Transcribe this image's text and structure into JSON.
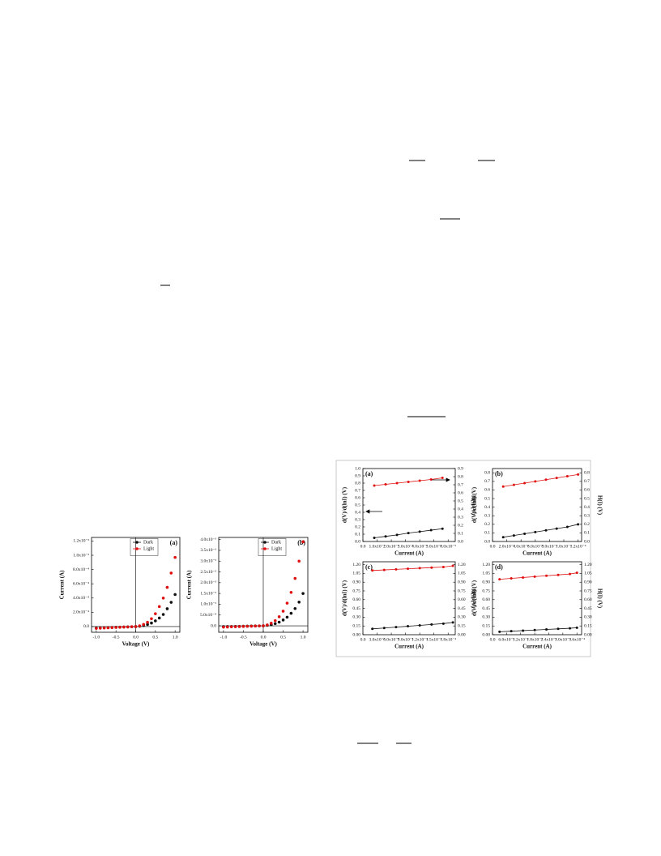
{
  "chart_data": [
    {
      "type": "scatter",
      "label": "(a)",
      "label_corner": "upper right",
      "x_label": "Voltage (V)",
      "y_label": "Current (A)",
      "legend": "upper right",
      "origin_lines": true,
      "x": [
        -1,
        -0.9,
        -0.8,
        -0.7,
        -0.6,
        -0.5,
        -0.4,
        -0.3,
        -0.2,
        -0.1,
        0,
        0.1,
        0.2,
        0.3,
        0.4,
        0.5,
        0.6,
        0.7,
        0.8,
        0.9,
        1
      ],
      "xlim": [
        -1.12,
        1.12
      ],
      "xticks": [
        {
          "value": -1,
          "label": "-1.0"
        },
        -0.5,
        {
          "value": 0,
          "label": "0.0"
        },
        0.5,
        {
          "value": 1,
          "label": "1.0"
        }
      ],
      "ylim": [
        -8e-05,
        0.00125
      ],
      "yticks": [
        {
          "value": 0,
          "label": "0.0"
        },
        {
          "value": 0.0002,
          "label": "2.0x10⁻⁴"
        },
        {
          "value": 0.0004,
          "label": "4.0x10⁻⁴"
        },
        {
          "value": 0.0006,
          "label": "6.0x10⁻⁴"
        },
        {
          "value": 0.0008,
          "label": "8.0x10⁻⁴"
        },
        {
          "value": 0.001,
          "label": "1.0x10⁻³"
        },
        {
          "value": 0.0012,
          "label": "1.2x10⁻³"
        }
      ],
      "series": [
        {
          "name": "Dark",
          "color": "#111111",
          "values": [
            -2e-05,
            -1.8e-05,
            -1.6e-05,
            -1.4e-05,
            -1.2e-05,
            -1e-05,
            -8e-06,
            -6e-06,
            -4e-06,
            -2e-06,
            0,
            5e-06,
            1.5e-05,
            3e-05,
            5e-05,
            8e-05,
            0.00012,
            0.00017,
            0.00025,
            0.00034,
            0.00045
          ]
        },
        {
          "name": "Light",
          "color": "#e01010",
          "values": [
            -2.5e-05,
            -2.2e-05,
            -2e-05,
            -1.7e-05,
            -1.5e-05,
            -1.2e-05,
            -1e-05,
            -7e-06,
            -5e-06,
            -2e-06,
            0,
            1e-05,
            3e-05,
            6e-05,
            0.00011,
            0.00018,
            0.00028,
            0.0004,
            0.00055,
            0.00075,
            0.00097
          ]
        }
      ]
    },
    {
      "type": "scatter",
      "label": "(b)",
      "label_corner": "upper right",
      "x_label": "Voltage (V)",
      "y_label": "Current (A)",
      "legend": "upper right",
      "origin_lines": true,
      "x": [
        -1,
        -0.9,
        -0.8,
        -0.7,
        -0.6,
        -0.5,
        -0.4,
        -0.3,
        -0.2,
        -0.1,
        0,
        0.1,
        0.2,
        0.3,
        0.4,
        0.5,
        0.6,
        0.7,
        0.8,
        0.9,
        1
      ],
      "xlim": [
        -1.12,
        1.12
      ],
      "xticks": [
        {
          "value": -1,
          "label": "-1.0"
        },
        -0.5,
        {
          "value": 0,
          "label": "0.0"
        },
        0.5,
        {
          "value": 1,
          "label": "1.0"
        }
      ],
      "ylim": [
        -0.0003,
        0.0041
      ],
      "yticks": [
        {
          "value": 0,
          "label": "0.0"
        },
        {
          "value": 0.0005,
          "label": "5.0x10⁻⁴"
        },
        {
          "value": 0.001,
          "label": "1.0x10⁻³"
        },
        {
          "value": 0.0015,
          "label": "1.5x10⁻³"
        },
        {
          "value": 0.002,
          "label": "2.0x10⁻³"
        },
        {
          "value": 0.0025,
          "label": "2.5x10⁻³"
        },
        {
          "value": 0.003,
          "label": "3.0x10⁻³"
        },
        {
          "value": 0.0035,
          "label": "3.5x10⁻³"
        },
        {
          "value": 0.004,
          "label": "4.0x10⁻³"
        }
      ],
      "series": [
        {
          "name": "Dark",
          "color": "#111111",
          "values": [
            -4e-05,
            -3.6e-05,
            -3.2e-05,
            -2.8e-05,
            -2.4e-05,
            -2e-05,
            -1.6e-05,
            -1.2e-05,
            -8e-06,
            -4e-06,
            0,
            2e-05,
            5e-05,
            0.0001,
            0.00017,
            0.00027,
            0.0004,
            0.00058,
            0.0008,
            0.0011,
            0.0015
          ]
        },
        {
          "name": "Light",
          "color": "#e01010",
          "values": [
            -6e-05,
            -5.4e-05,
            -4.8e-05,
            -4.2e-05,
            -3.6e-05,
            -3e-05,
            -2.4e-05,
            -1.8e-05,
            -1.2e-05,
            -6e-06,
            0,
            4e-05,
            0.00012,
            0.00024,
            0.00042,
            0.00068,
            0.00105,
            0.00155,
            0.0022,
            0.003,
            0.0039
          ]
        }
      ]
    },
    {
      "type": "line",
      "label": "(a)",
      "label_corner": "upper left",
      "x_label": "Current (A)",
      "y_label": "d(V)/d(lnI) (V)",
      "y2_label": "H(I) (V)",
      "x": [
        8e-06,
        1.6e-05,
        2.4e-05,
        3.2e-05,
        4e-05,
        4.8e-05,
        5.6e-05
      ],
      "xlim": [
        0,
        6.5e-05
      ],
      "xticks": [
        {
          "value": 0,
          "label": "0.0"
        },
        {
          "value": 1e-05,
          "label": "1.0x10⁻⁵"
        },
        {
          "value": 2e-05,
          "label": "2.0x10⁻⁵"
        },
        {
          "value": 3e-05,
          "label": "3.0x10⁻⁵"
        },
        {
          "value": 4e-05,
          "label": "4.0x10⁻⁵"
        },
        {
          "value": 5e-05,
          "label": "5.0x10⁻⁵"
        },
        {
          "value": 6e-05,
          "label": "6.0x10⁻⁵"
        }
      ],
      "ylim": [
        0,
        1
      ],
      "yticks": [
        {
          "value": 0,
          "label": "0.0"
        },
        0.1,
        0.2,
        0.3,
        0.4,
        0.5,
        0.6,
        0.7,
        0.8,
        0.9,
        {
          "value": 1,
          "label": "1.0"
        }
      ],
      "y2lim": [
        0,
        0.9
      ],
      "y2ticks": [
        {
          "value": 0,
          "label": "0.0"
        },
        0.1,
        0.2,
        0.3,
        0.4,
        0.5,
        0.6,
        0.7,
        0.8,
        0.9
      ],
      "series": [
        {
          "color": "#111111",
          "values": [
            0.05,
            0.07,
            0.09,
            0.115,
            0.135,
            0.155,
            0.175
          ]
        },
        {
          "color": "#e01010",
          "axis": "y2",
          "values": [
            0.69,
            0.705,
            0.72,
            0.735,
            0.75,
            0.765,
            0.785
          ]
        }
      ]
    },
    {
      "type": "line",
      "label": "(b)",
      "label_corner": "upper left",
      "x_label": "Current (A)",
      "y_label": "d(V)/d(lnI) (V)",
      "y2_label": "H(I) (V)",
      "x": [
        1.5e-05,
        3e-05,
        4.5e-05,
        6e-05,
        7.5e-05,
        9e-05,
        0.000105,
        0.00012
      ],
      "xlim": [
        0,
        0.000125
      ],
      "xticks": [
        {
          "value": 0,
          "label": "0.0"
        },
        {
          "value": 2e-05,
          "label": "2.0x10⁻⁵"
        },
        {
          "value": 4e-05,
          "label": "4.0x10⁻⁵"
        },
        {
          "value": 6e-05,
          "label": "6.0x10⁻⁵"
        },
        {
          "value": 8e-05,
          "label": "8.0x10⁻⁵"
        },
        {
          "value": 0.0001,
          "label": "1.0x10⁻⁴"
        },
        {
          "value": 0.00012,
          "label": "1.2x10⁻⁴"
        }
      ],
      "ylim": [
        0,
        0.85
      ],
      "yticks": [
        {
          "value": 0,
          "label": "0.0"
        },
        0.1,
        0.2,
        0.3,
        0.4,
        0.5,
        0.6,
        0.7,
        0.8
      ],
      "y2lim": [
        0,
        0.85
      ],
      "y2ticks": [
        {
          "value": 0,
          "label": "0.0"
        },
        0.1,
        0.2,
        0.3,
        0.4,
        0.5,
        0.6,
        0.7,
        0.8
      ],
      "series": [
        {
          "color": "#111111",
          "values": [
            0.05,
            0.07,
            0.09,
            0.11,
            0.13,
            0.15,
            0.17,
            0.2
          ]
        },
        {
          "color": "#e01010",
          "axis": "y2",
          "values": [
            0.64,
            0.66,
            0.68,
            0.7,
            0.72,
            0.74,
            0.76,
            0.78
          ]
        }
      ]
    },
    {
      "type": "line",
      "label": "(c)",
      "label_corner": "upper left",
      "x_label": "Current (A)",
      "y_label": "d(V)/d(lnI) (V)",
      "y2_label": "H(I) (V)",
      "x": [
        2e-05,
        4.5e-05,
        7e-05,
        9.5e-05,
        0.00012,
        0.000145,
        0.00017,
        0.00019
      ],
      "xlim": [
        0,
        0.000195
      ],
      "xticks": [
        {
          "value": 0,
          "label": "0.0"
        },
        {
          "value": 3e-05,
          "label": "3.0x10⁻⁵"
        },
        {
          "value": 6e-05,
          "label": "6.0x10⁻⁵"
        },
        {
          "value": 9e-05,
          "label": "9.0x10⁻⁵"
        },
        {
          "value": 0.00012,
          "label": "1.2x10⁻⁴"
        },
        {
          "value": 0.00015,
          "label": "1.5x10⁻⁴"
        },
        {
          "value": 0.00018,
          "label": "1.8x10⁻⁴"
        }
      ],
      "ylim": [
        0,
        1.25
      ],
      "yticks": [
        {
          "value": 0,
          "label": "0.00"
        },
        0.15,
        {
          "value": 0.3,
          "label": "0.30"
        },
        0.45,
        {
          "value": 0.6,
          "label": "0.60"
        },
        0.75,
        {
          "value": 0.9,
          "label": "0.90"
        },
        1.05,
        {
          "value": 1.2,
          "label": "1.20"
        }
      ],
      "y2lim": [
        0,
        1.25
      ],
      "y2ticks": [
        {
          "value": 0,
          "label": "0.00"
        },
        0.15,
        {
          "value": 0.3,
          "label": "0.30"
        },
        0.45,
        {
          "value": 0.6,
          "label": "0.60"
        },
        0.75,
        {
          "value": 0.9,
          "label": "0.90"
        },
        1.05,
        {
          "value": 1.2,
          "label": "1.20"
        }
      ],
      "series": [
        {
          "color": "#111111",
          "values": [
            0.1,
            0.115,
            0.13,
            0.145,
            0.16,
            0.175,
            0.19,
            0.21
          ]
        },
        {
          "color": "#e01010",
          "axis": "y2",
          "values": [
            1.1,
            1.11,
            1.12,
            1.13,
            1.14,
            1.15,
            1.16,
            1.18
          ]
        }
      ]
    },
    {
      "type": "line",
      "label": "(d)",
      "label_corner": "upper left",
      "x_label": "Current (A)",
      "y_label": "d(V)/d(lnI) (V)",
      "y2_label": "H(I) (V)",
      "x": [
        3e-05,
        8e-05,
        0.00013,
        0.00018,
        0.00023,
        0.00028,
        0.00033,
        0.00036
      ],
      "xlim": [
        0,
        0.00038
      ],
      "xticks": [
        {
          "value": 0,
          "label": "0.0"
        },
        {
          "value": 6e-05,
          "label": "6.0x10⁻⁵"
        },
        {
          "value": 0.00012,
          "label": "1.2x10⁻⁴"
        },
        {
          "value": 0.00018,
          "label": "1.8x10⁻⁴"
        },
        {
          "value": 0.00024,
          "label": "2.4x10⁻⁴"
        },
        {
          "value": 0.0003,
          "label": "3.0x10⁻⁴"
        },
        {
          "value": 0.00036,
          "label": "3.6x10⁻⁴"
        }
      ],
      "ylim": [
        0,
        1.25
      ],
      "yticks": [
        {
          "value": 0,
          "label": "0.00"
        },
        0.15,
        {
          "value": 0.3,
          "label": "0.30"
        },
        0.45,
        {
          "value": 0.6,
          "label": "0.60"
        },
        0.75,
        {
          "value": 0.9,
          "label": "0.90"
        },
        1.05,
        {
          "value": 1.2,
          "label": "1.20"
        }
      ],
      "y2lim": [
        0,
        1.25
      ],
      "y2ticks": [
        {
          "value": 0,
          "label": "0.00"
        },
        0.15,
        {
          "value": 0.3,
          "label": "0.30"
        },
        0.45,
        {
          "value": 0.6,
          "label": "0.60"
        },
        0.75,
        {
          "value": 0.9,
          "label": "0.90"
        },
        1.05,
        {
          "value": 1.2,
          "label": "1.20"
        }
      ],
      "series": [
        {
          "color": "#111111",
          "values": [
            0.05,
            0.06,
            0.07,
            0.08,
            0.09,
            0.1,
            0.11,
            0.12
          ]
        },
        {
          "color": "#e01010",
          "axis": "y2",
          "values": [
            0.95,
            0.965,
            0.98,
            0.995,
            1.01,
            1.025,
            1.04,
            1.06
          ]
        }
      ]
    }
  ]
}
